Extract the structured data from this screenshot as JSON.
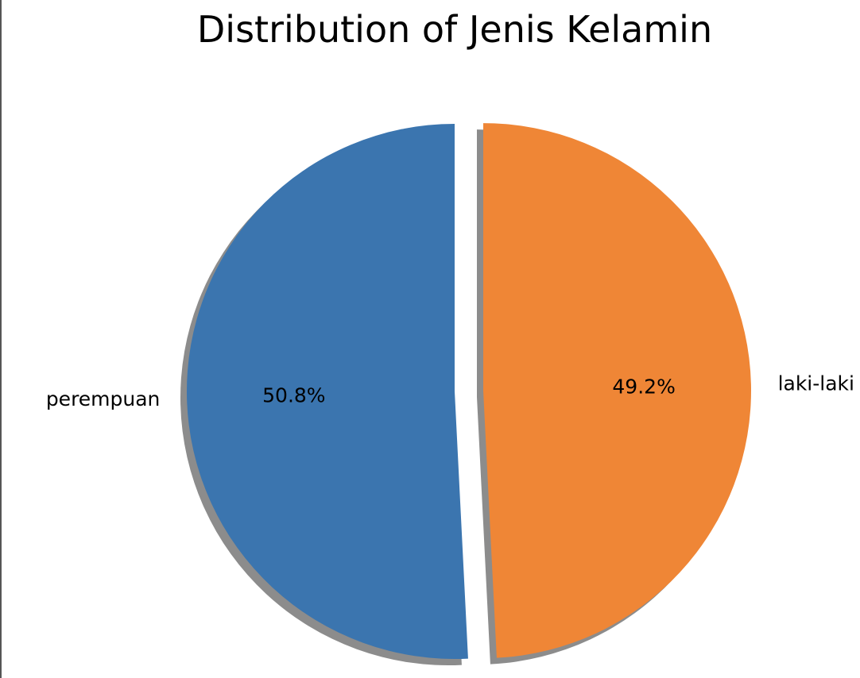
{
  "chart_data": {
    "type": "pie",
    "title": "Distribution of Jenis Kelamin",
    "slices": [
      {
        "label": "perempuan",
        "value": 50.8,
        "pct_label": "50.8%",
        "color": "#3b75af",
        "exploded": false
      },
      {
        "label": "laki-laki",
        "value": 49.2,
        "pct_label": "49.2%",
        "color": "#ef8636",
        "exploded": true
      }
    ],
    "start_angle_deg": 90,
    "shadow": true
  }
}
